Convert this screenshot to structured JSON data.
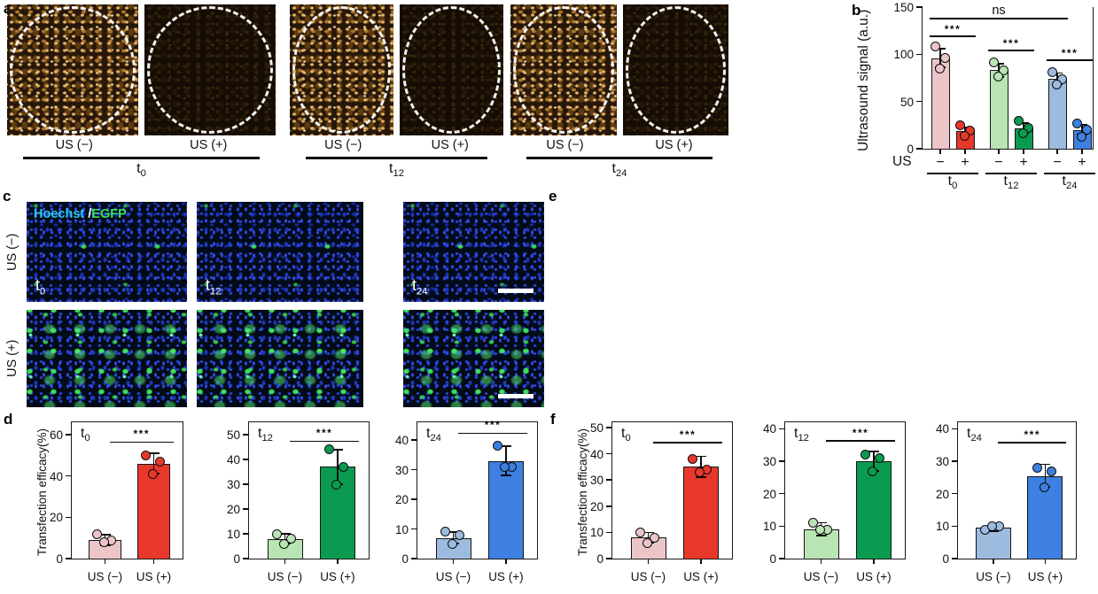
{
  "figure": {
    "panel_letters": {
      "a": "a",
      "b": "b",
      "c": "c",
      "d": "d",
      "e": "e",
      "f": "f"
    },
    "panel_a": {
      "groups": [
        {
          "time": {
            "base": "t",
            "sub": "0"
          },
          "tiles": [
            {
              "label": "US (−)",
              "variant": "bright"
            },
            {
              "label": "US (+)",
              "variant": "dark"
            }
          ]
        },
        {
          "time": {
            "base": "t",
            "sub": "12"
          },
          "tiles": [
            {
              "label": "US (−)",
              "variant": "bright"
            },
            {
              "label": "US (+)",
              "variant": "dark"
            }
          ]
        },
        {
          "time": {
            "base": "t",
            "sub": "24"
          },
          "tiles": [
            {
              "label": "US (−)",
              "variant": "bright"
            },
            {
              "label": "US (+)",
              "variant": "dark"
            }
          ]
        }
      ]
    },
    "panel_c": {
      "row_labels": [
        "US (−)",
        "US (+)"
      ],
      "stain_label": {
        "part1": "Hoechst",
        "sep": " /",
        "part2": "EGFP",
        "color1": "#2ec9f0",
        "color2": "#3ce05a"
      },
      "col_times": [
        {
          "base": "t",
          "sub": "0"
        },
        {
          "base": "t",
          "sub": "12"
        },
        {
          "base": "t",
          "sub": "24"
        }
      ]
    },
    "panel_e": {
      "col_times": [
        {
          "base": "t",
          "sub": "0"
        },
        {
          "base": "t",
          "sub": "12"
        },
        {
          "base": "t",
          "sub": "24"
        }
      ]
    }
  },
  "chart_data": [
    {
      "id": "b",
      "type": "bar",
      "ylabel": "Ultrasound signal (a.u.)",
      "ylim": [
        0,
        150
      ],
      "yticks": [
        0,
        50,
        100,
        150
      ],
      "x_prefix": "US",
      "pair_labels": [
        "−",
        "+"
      ],
      "groups": [
        {
          "base": "t",
          "sub": "0"
        },
        {
          "base": "t",
          "sub": "12"
        },
        {
          "base": "t",
          "sub": "24"
        }
      ],
      "bars": [
        {
          "group": 0,
          "us": "−",
          "value": 96,
          "err": 10,
          "dots": [
            108,
            96,
            85
          ],
          "color": "#ecc5c8"
        },
        {
          "group": 0,
          "us": "+",
          "value": 19,
          "err": 4,
          "dots": [
            25,
            19,
            14
          ],
          "color": "#e8382b"
        },
        {
          "group": 1,
          "us": "−",
          "value": 83,
          "err": 7,
          "dots": [
            91,
            83,
            76
          ],
          "color": "#b9e5b4"
        },
        {
          "group": 1,
          "us": "+",
          "value": 22,
          "err": 5,
          "dots": [
            30,
            22,
            16
          ],
          "color": "#0b9b50"
        },
        {
          "group": 2,
          "us": "−",
          "value": 74,
          "err": 6,
          "dots": [
            81,
            74,
            68
          ],
          "color": "#9dbbdf"
        },
        {
          "group": 2,
          "us": "+",
          "value": 20,
          "err": 5,
          "dots": [
            27,
            20,
            13
          ],
          "color": "#3d80e2"
        }
      ],
      "significance": [
        {
          "bars": [
            0,
            1
          ],
          "label": "***",
          "y": 118
        },
        {
          "bars": [
            2,
            3
          ],
          "label": "***",
          "y": 103
        },
        {
          "bars": [
            4,
            5
          ],
          "label": "***",
          "y": 93
        },
        {
          "bars": [
            0,
            4
          ],
          "label": "ns",
          "y": 137
        }
      ]
    },
    {
      "id": "d1",
      "type": "bar",
      "annotation": {
        "base": "t",
        "sub": "0"
      },
      "ylabel": "Transfection efficacy(%)",
      "ylim": [
        0,
        66
      ],
      "yticks": [
        0,
        20,
        40,
        60
      ],
      "bars": [
        {
          "label": "US (−)",
          "value": 9,
          "err": 2.5,
          "dots": [
            12,
            9,
            8
          ],
          "color": "#ecc5c8"
        },
        {
          "label": "US (+)",
          "value": 46,
          "err": 5,
          "dots": [
            50,
            47,
            41
          ],
          "color": "#e8382b"
        }
      ],
      "significance": {
        "label": "***",
        "y": 56
      }
    },
    {
      "id": "d2",
      "type": "bar",
      "annotation": {
        "base": "t",
        "sub": "12"
      },
      "ylabel": "",
      "ylim": [
        0,
        55
      ],
      "yticks": [
        0,
        10,
        20,
        30,
        40,
        50
      ],
      "bars": [
        {
          "label": "US (−)",
          "value": 8,
          "err": 2,
          "dots": [
            10,
            8,
            6
          ],
          "color": "#b9e5b4"
        },
        {
          "label": "US (+)",
          "value": 37,
          "err": 7,
          "dots": [
            44,
            37,
            30
          ],
          "color": "#0b9b50"
        }
      ],
      "significance": {
        "label": "***",
        "y": 47
      }
    },
    {
      "id": "d3",
      "type": "bar",
      "annotation": {
        "base": "t",
        "sub": "24"
      },
      "ylabel": "",
      "ylim": [
        0,
        46
      ],
      "yticks": [
        0,
        10,
        20,
        30,
        40
      ],
      "bars": [
        {
          "label": "US (−)",
          "value": 7,
          "err": 2,
          "dots": [
            9,
            8,
            5
          ],
          "color": "#9dbbdf"
        },
        {
          "label": "US (+)",
          "value": 33,
          "err": 5,
          "dots": [
            38,
            31,
            31
          ],
          "color": "#3d80e2"
        }
      ],
      "significance": {
        "label": "***",
        "y": 42
      }
    },
    {
      "id": "f1",
      "type": "bar",
      "annotation": {
        "base": "t",
        "sub": "0"
      },
      "ylabel": "Transfection efficacy(%)",
      "ylim": [
        0,
        52
      ],
      "yticks": [
        0,
        10,
        20,
        30,
        40,
        50
      ],
      "bars": [
        {
          "label": "US (−)",
          "value": 8,
          "err": 2,
          "dots": [
            10,
            8,
            6
          ],
          "color": "#ecc5c8"
        },
        {
          "label": "US (+)",
          "value": 35,
          "err": 4,
          "dots": [
            38,
            34,
            33
          ],
          "color": "#e8382b"
        }
      ],
      "significance": {
        "label": "***",
        "y": 44
      }
    },
    {
      "id": "f2",
      "type": "bar",
      "annotation": {
        "base": "t",
        "sub": "12"
      },
      "ylabel": "",
      "ylim": [
        0,
        42
      ],
      "yticks": [
        0,
        10,
        20,
        30,
        40
      ],
      "bars": [
        {
          "label": "US (−)",
          "value": 9,
          "err": 2,
          "dots": [
            11,
            9,
            9
          ],
          "color": "#b9e5b4"
        },
        {
          "label": "US (+)",
          "value": 30,
          "err": 3,
          "dots": [
            32,
            31,
            27
          ],
          "color": "#0b9b50"
        }
      ],
      "significance": {
        "label": "***",
        "y": 36
      }
    },
    {
      "id": "f3",
      "type": "bar",
      "annotation": {
        "base": "t",
        "sub": "24"
      },
      "ylabel": "",
      "ylim": [
        0,
        42
      ],
      "yticks": [
        0,
        10,
        20,
        30,
        40
      ],
      "bars": [
        {
          "label": "US (−)",
          "value": 9.5,
          "err": 1,
          "dots": [
            9,
            10,
            10
          ],
          "color": "#9dbbdf"
        },
        {
          "label": "US (+)",
          "value": 25.5,
          "err": 3.5,
          "dots": [
            28,
            27,
            22
          ],
          "color": "#3d80e2"
        }
      ],
      "significance": {
        "label": "***",
        "y": 35.5
      }
    }
  ]
}
